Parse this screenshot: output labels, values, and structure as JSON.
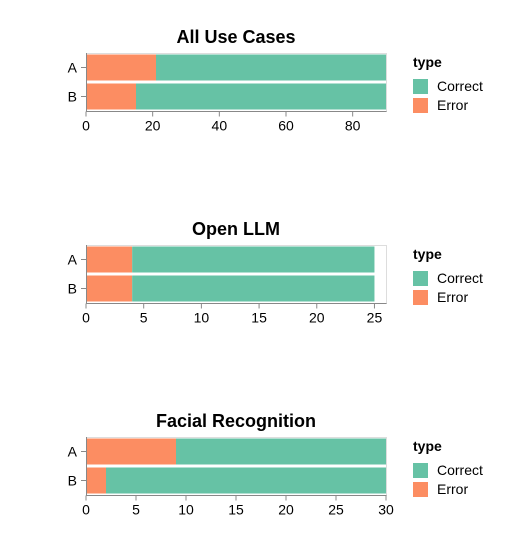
{
  "legend": {
    "title": "type",
    "entries": [
      {
        "label": "Correct",
        "color": "#66c2a5"
      },
      {
        "label": "Error",
        "color": "#fc8d62"
      }
    ]
  },
  "chart_data": [
    {
      "type": "bar",
      "orientation": "horizontal-stacked",
      "title": "All Use Cases",
      "categories": [
        "A",
        "B"
      ],
      "series": [
        {
          "name": "Error",
          "values": [
            21,
            15
          ]
        },
        {
          "name": "Correct",
          "values": [
            69,
            75
          ]
        }
      ],
      "xlim": [
        0,
        90
      ],
      "xticks": [
        0,
        20,
        40,
        60,
        80
      ],
      "xlabel": "",
      "ylabel": "",
      "legend_position": "right"
    },
    {
      "type": "bar",
      "orientation": "horizontal-stacked",
      "title": "Open LLM",
      "categories": [
        "A",
        "B"
      ],
      "series": [
        {
          "name": "Error",
          "values": [
            4,
            4
          ]
        },
        {
          "name": "Correct",
          "values": [
            21,
            21
          ]
        }
      ],
      "xlim": [
        0,
        26
      ],
      "xticks": [
        0,
        5,
        10,
        15,
        20,
        25
      ],
      "xlabel": "",
      "ylabel": "",
      "legend_position": "right"
    },
    {
      "type": "bar",
      "orientation": "horizontal-stacked",
      "title": "Facial Recognition",
      "categories": [
        "A",
        "B"
      ],
      "series": [
        {
          "name": "Error",
          "values": [
            9,
            2
          ]
        },
        {
          "name": "Correct",
          "values": [
            21,
            28
          ]
        }
      ],
      "xlim": [
        0,
        30
      ],
      "xticks": [
        0,
        5,
        10,
        15,
        20,
        25,
        30
      ],
      "xlabel": "",
      "ylabel": "",
      "legend_position": "right"
    }
  ]
}
